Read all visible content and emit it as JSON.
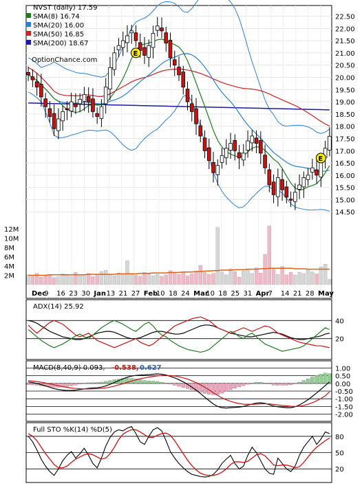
{
  "header": {
    "title": "NVST (daily) 17.59",
    "watermark": "OptionChance.com"
  },
  "legend": [
    {
      "label": "SMA(8) 16.74",
      "color": "#1f7a1f"
    },
    {
      "label": "SMA(20) 16.00",
      "color": "#2a7fd4"
    },
    {
      "label": "SMA(50) 16.85",
      "color": "#cc2222"
    },
    {
      "label": "SMA(200) 18.67",
      "color": "#1a1aa0"
    }
  ],
  "colors": {
    "up": "#ffffff",
    "down": "#cc1111",
    "sma8": "#1f7a1f",
    "sma20": "#2a7fd4",
    "sma50": "#cc2222",
    "sma200": "#1a1aa0",
    "bollinger": "#2a7fd4",
    "vol_up": "#d6d6d6",
    "vol_down": "#f3b8c8",
    "vol_avg": "#e06010",
    "adx": "#000000",
    "di_plus": "#1f7a1f",
    "di_minus": "#cc1111",
    "macd_hist_pos": "#90d090",
    "macd_hist_neg": "#f0a0b8",
    "stoch_k": "#000000",
    "stoch_d": "#cc1111",
    "earnings": "#ffee00"
  },
  "chart_data": [
    {
      "type": "candlestick",
      "title": "NVST (daily) 17.59",
      "ylim": [
        14.0,
        22.6
      ],
      "y_ticks": [
        "22.50",
        "22.00",
        "21.50",
        "21.00",
        "20.50",
        "20.00",
        "19.50",
        "19.00",
        "18.50",
        "18.00",
        "17.50",
        "17.00",
        "16.50",
        "16.00",
        "15.50",
        "15.00",
        "14.50"
      ],
      "x_labels": [
        "Dec",
        "9",
        "16",
        "23",
        "30",
        "Jan",
        "13",
        "21",
        "27",
        "Feb",
        "10",
        "18",
        "24",
        "Mar",
        "10",
        "18",
        "25",
        "31",
        "Apr",
        "7",
        "14",
        "21",
        "28",
        "May"
      ],
      "close_series": [
        20.1,
        19.9,
        19.6,
        19.2,
        18.8,
        18.4,
        17.9,
        18.3,
        18.6,
        18.7,
        19.0,
        18.8,
        19.1,
        19.3,
        19.0,
        18.6,
        18.4,
        18.8,
        19.6,
        20.4,
        21.0,
        21.3,
        21.5,
        21.7,
        21.9,
        21.5,
        21.1,
        20.9,
        21.3,
        21.8,
        22.1,
        21.9,
        21.4,
        20.8,
        20.5,
        20.1,
        19.6,
        19.0,
        18.6,
        18.1,
        17.6,
        17.0,
        16.6,
        16.1,
        16.4,
        16.8,
        17.1,
        17.3,
        17.0,
        16.7,
        16.9,
        17.4,
        17.6,
        17.3,
        16.9,
        16.3,
        15.6,
        15.2,
        15.9,
        15.4,
        15.1,
        15.0,
        15.3,
        15.6,
        15.9,
        16.0,
        16.3,
        16.0,
        16.6,
        17.1,
        17.59
      ],
      "sma8_end": 16.74,
      "sma20_end": 16.0,
      "sma50_end": 16.85,
      "sma200_end": 18.67,
      "earnings_markers": [
        "E",
        "E"
      ]
    },
    {
      "type": "bar",
      "name": "Volume",
      "y_ticks": [
        "12M",
        "10M",
        "8M",
        "6M",
        "4M",
        "2M"
      ],
      "ylim": [
        0,
        13
      ],
      "values": [
        2.1,
        1.8,
        2.4,
        1.6,
        1.9,
        2.2,
        1.5,
        1.7,
        2.3,
        2.0,
        1.8,
        2.6,
        1.9,
        2.1,
        2.4,
        1.7,
        2.0,
        2.8,
        3.1,
        2.2,
        1.9,
        2.5,
        2.1,
        5.1,
        2.4,
        2.0,
        1.8,
        2.6,
        2.3,
        1.9,
        2.2,
        1.8,
        2.1,
        3.0,
        2.4,
        2.2,
        2.6,
        1.9,
        2.3,
        2.8,
        4.1,
        2.6,
        2.2,
        2.4,
        12.3,
        2.7,
        2.1,
        3.4,
        2.8,
        1.6,
        2.9,
        3.3,
        2.4,
        3.6,
        2.5,
        6.5,
        12.6,
        3.3,
        2.2,
        3.9,
        2.1,
        2.6,
        2.0,
        2.6,
        2.4,
        3.1,
        2.7,
        2.3,
        3.8,
        4.4,
        1.1
      ],
      "avg_line": [
        2.0,
        2.0,
        2.0,
        2.0,
        2.0,
        2.1,
        2.1,
        2.1,
        2.1,
        2.1,
        2.1,
        2.1,
        2.1,
        2.1,
        2.2,
        2.2,
        2.2,
        2.2,
        2.2,
        2.2,
        2.2,
        2.3,
        2.3,
        2.3,
        2.3,
        2.3,
        2.4,
        2.4,
        2.4,
        2.5,
        2.5,
        2.5,
        2.5,
        2.6,
        2.6,
        2.6,
        2.7,
        2.7,
        2.7,
        2.8,
        2.8,
        2.9,
        2.9,
        3.0,
        3.0,
        3.1,
        3.1,
        3.1,
        3.2,
        3.2,
        3.2,
        3.3,
        3.3,
        3.3,
        3.4,
        3.4,
        3.5,
        3.5,
        3.5,
        3.5,
        3.5,
        3.5,
        3.4,
        3.4,
        3.4,
        3.3,
        3.3,
        3.3,
        3.3,
        3.3,
        3.3
      ]
    },
    {
      "type": "line",
      "name": "ADX(14)",
      "label": "ADX(14) 25.92",
      "ylim": [
        0,
        60
      ],
      "y_ticks": [
        "40",
        "20"
      ],
      "series": [
        {
          "name": "ADX",
          "values": [
            40,
            39,
            37,
            34,
            31,
            28,
            26,
            24,
            22,
            21,
            20,
            19,
            19,
            20,
            22,
            24,
            26,
            27,
            28,
            28,
            27,
            25,
            23,
            21,
            20,
            20,
            21,
            23,
            25,
            27,
            28,
            28,
            27,
            26,
            25,
            25,
            26,
            28,
            30,
            32,
            34,
            35,
            35,
            34,
            32,
            30,
            28,
            26,
            25,
            24,
            23,
            22,
            22,
            23,
            24,
            25,
            26,
            27,
            26,
            25,
            23,
            21,
            20,
            19,
            19,
            20,
            21,
            22,
            23,
            25,
            26
          ]
        },
        {
          "name": "+DI",
          "values": [
            30,
            26,
            22,
            18,
            15,
            12,
            10,
            12,
            14,
            17,
            20,
            23,
            25,
            22,
            20,
            24,
            28,
            32,
            35,
            38,
            40,
            38,
            36,
            33,
            30,
            28,
            32,
            36,
            38,
            34,
            28,
            24,
            22,
            18,
            15,
            12,
            10,
            8,
            7,
            6,
            5,
            6,
            8,
            12,
            16,
            20,
            24,
            28,
            26,
            22,
            20,
            24,
            26,
            22,
            18,
            14,
            12,
            10,
            8,
            6,
            7,
            8,
            9,
            10,
            12,
            16,
            20,
            24,
            28,
            32,
            30
          ]
        },
        {
          "name": "-DI",
          "values": [
            35,
            30,
            26,
            30,
            34,
            38,
            40,
            38,
            36,
            32,
            28,
            24,
            22,
            24,
            26,
            22,
            18,
            16,
            14,
            12,
            10,
            12,
            14,
            16,
            18,
            20,
            16,
            14,
            12,
            14,
            18,
            22,
            26,
            30,
            34,
            36,
            38,
            40,
            42,
            43,
            44,
            42,
            40,
            36,
            32,
            30,
            28,
            26,
            28,
            30,
            32,
            30,
            28,
            30,
            32,
            34,
            33,
            30,
            26,
            24,
            22,
            20,
            18,
            16,
            15,
            14,
            13,
            12,
            12,
            11,
            10
          ]
        }
      ]
    },
    {
      "type": "line",
      "name": "MACD(8,40,9)",
      "label": "MACD(8,40,9) 0.093,",
      "values_shown": [
        "-0.538,",
        "0.627"
      ],
      "ylim": [
        -2.2,
        1.2
      ],
      "y_ticks": [
        "1.00",
        "0.50",
        "0.00",
        "-0.50",
        "-1.00",
        "-1.50",
        "-2.00"
      ],
      "series": [
        {
          "name": "MACD",
          "values": [
            0.1,
            0.05,
            0.0,
            -0.08,
            -0.16,
            -0.25,
            -0.34,
            -0.4,
            -0.44,
            -0.46,
            -0.46,
            -0.44,
            -0.4,
            -0.36,
            -0.32,
            -0.3,
            -0.28,
            -0.24,
            -0.16,
            -0.06,
            0.06,
            0.18,
            0.3,
            0.4,
            0.48,
            0.52,
            0.54,
            0.55,
            0.57,
            0.6,
            0.62,
            0.6,
            0.55,
            0.46,
            0.36,
            0.24,
            0.1,
            -0.06,
            -0.24,
            -0.44,
            -0.66,
            -0.9,
            -1.12,
            -1.34,
            -1.5,
            -1.58,
            -1.6,
            -1.58,
            -1.56,
            -1.54,
            -1.5,
            -1.42,
            -1.34,
            -1.28,
            -1.26,
            -1.3,
            -1.38,
            -1.48,
            -1.52,
            -1.55,
            -1.58,
            -1.58,
            -1.52,
            -1.4,
            -1.24,
            -1.06,
            -0.84,
            -0.62,
            -0.38,
            -0.14,
            0.09
          ]
        },
        {
          "name": "Signal",
          "values": [
            0.18,
            0.15,
            0.12,
            0.08,
            0.03,
            -0.03,
            -0.09,
            -0.15,
            -0.21,
            -0.26,
            -0.3,
            -0.33,
            -0.35,
            -0.36,
            -0.36,
            -0.35,
            -0.34,
            -0.32,
            -0.29,
            -0.24,
            -0.18,
            -0.1,
            -0.02,
            0.07,
            0.15,
            0.23,
            0.3,
            0.36,
            0.41,
            0.45,
            0.49,
            0.52,
            0.52,
            0.51,
            0.48,
            0.43,
            0.36,
            0.28,
            0.17,
            0.05,
            -0.09,
            -0.25,
            -0.42,
            -0.61,
            -0.78,
            -0.94,
            -1.07,
            -1.17,
            -1.25,
            -1.31,
            -1.35,
            -1.36,
            -1.36,
            -1.35,
            -1.33,
            -1.33,
            -1.34,
            -1.37,
            -1.4,
            -1.43,
            -1.46,
            -1.49,
            -1.5,
            -1.48,
            -1.43,
            -1.36,
            -1.26,
            -1.13,
            -0.98,
            -0.81,
            -0.54
          ]
        }
      ]
    },
    {
      "type": "line",
      "name": "Full STO",
      "label": "Full STO %K(14) %D(5)",
      "ylim": [
        0,
        100
      ],
      "y_ticks": [
        "80",
        "50",
        "20"
      ],
      "series": [
        {
          "name": "%K",
          "values": [
            80,
            70,
            55,
            38,
            25,
            15,
            8,
            20,
            35,
            45,
            52,
            40,
            48,
            58,
            45,
            30,
            22,
            40,
            62,
            78,
            88,
            92,
            90,
            95,
            98,
            85,
            70,
            65,
            80,
            92,
            96,
            90,
            72,
            52,
            40,
            30,
            22,
            15,
            10,
            8,
            6,
            5,
            6,
            10,
            18,
            30,
            38,
            45,
            30,
            20,
            25,
            45,
            60,
            50,
            35,
            20,
            12,
            10,
            40,
            30,
            20,
            15,
            25,
            45,
            60,
            70,
            80,
            65,
            75,
            88,
            85
          ]
        },
        {
          "name": "%D",
          "values": [
            85,
            80,
            72,
            60,
            48,
            38,
            28,
            22,
            22,
            25,
            32,
            38,
            42,
            46,
            48,
            46,
            42,
            38,
            40,
            48,
            60,
            74,
            84,
            89,
            92,
            92,
            88,
            83,
            78,
            78,
            82,
            85,
            86,
            82,
            72,
            60,
            48,
            36,
            26,
            18,
            12,
            9,
            8,
            8,
            10,
            14,
            20,
            28,
            33,
            33,
            32,
            34,
            40,
            46,
            48,
            44,
            36,
            27,
            26,
            27,
            27,
            25,
            22,
            24,
            32,
            42,
            52,
            60,
            66,
            72,
            77
          ]
        }
      ]
    }
  ]
}
